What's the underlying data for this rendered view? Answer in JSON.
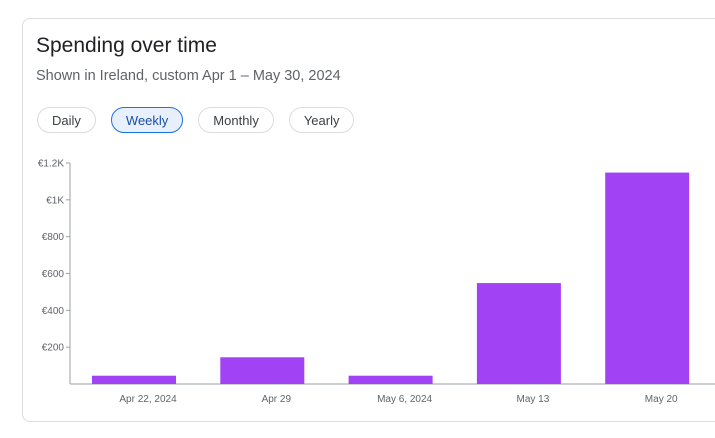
{
  "header": {
    "title": "Spending over time",
    "subtitle": "Shown in Ireland, custom Apr 1 – May 30, 2024"
  },
  "filters": {
    "options": [
      "Daily",
      "Weekly",
      "Monthly",
      "Yearly"
    ],
    "selected": "Weekly"
  },
  "chart_data": {
    "type": "bar",
    "title": "Spending over time",
    "categories": [
      "Apr 22, 2024",
      "Apr 29",
      "May 6, 2024",
      "May 13",
      "May 20"
    ],
    "values": [
      45,
      145,
      45,
      548,
      1148
    ],
    "ylim": [
      0,
      1200
    ],
    "yticks": [
      200,
      400,
      600,
      800,
      1000,
      1200
    ],
    "ytick_labels": [
      "€200",
      "€400",
      "€600",
      "€800",
      "€1K",
      "€1.2K"
    ],
    "xlabel": "",
    "ylabel": "",
    "grid": false,
    "bar_color": "#a142f4"
  }
}
